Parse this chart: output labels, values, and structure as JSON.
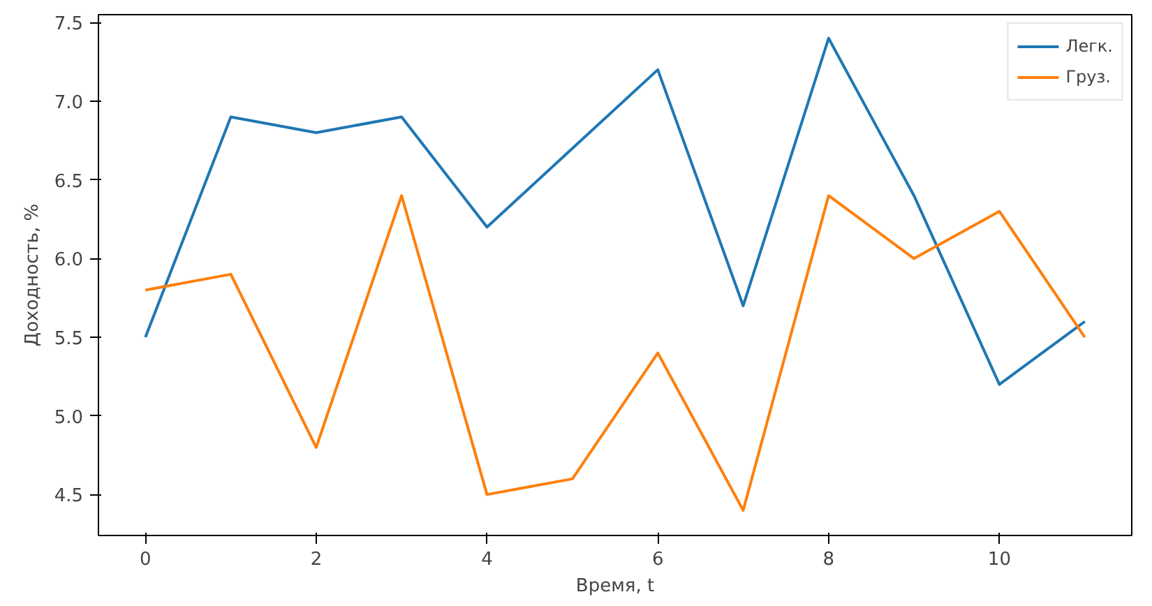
{
  "chart_data": {
    "type": "line",
    "xlabel": "Время, t",
    "ylabel": "Доходность, %",
    "x": [
      0,
      1,
      2,
      3,
      4,
      5,
      6,
      7,
      8,
      9,
      10,
      11
    ],
    "series": [
      {
        "name": "Легк.",
        "color": "#1f77b4",
        "values": [
          5.5,
          6.9,
          6.8,
          6.9,
          6.2,
          6.7,
          7.2,
          5.7,
          7.4,
          6.4,
          5.2,
          5.6
        ]
      },
      {
        "name": "Груз.",
        "color": "#ff7f0e",
        "values": [
          5.8,
          5.9,
          4.8,
          6.4,
          4.5,
          4.6,
          5.4,
          4.4,
          6.4,
          6.0,
          6.3,
          5.5
        ]
      }
    ],
    "xlim": [
      -0.55,
      11.55
    ],
    "ylim": [
      4.24,
      7.55
    ],
    "xticks": [
      0,
      2,
      4,
      6,
      8,
      10
    ],
    "yticks": [
      {
        "value": 4.5,
        "label": "4.5"
      },
      {
        "value": 5.0,
        "label": "5.0"
      },
      {
        "value": 5.5,
        "label": "5.5"
      },
      {
        "value": 6.0,
        "label": "6.0"
      },
      {
        "value": 6.5,
        "label": "6.5"
      },
      {
        "value": 7.0,
        "label": "7.0"
      },
      {
        "value": 7.5,
        "label": "7.5"
      }
    ],
    "grid": false,
    "legend": "top right",
    "marker": "none",
    "line_style": "solid"
  }
}
